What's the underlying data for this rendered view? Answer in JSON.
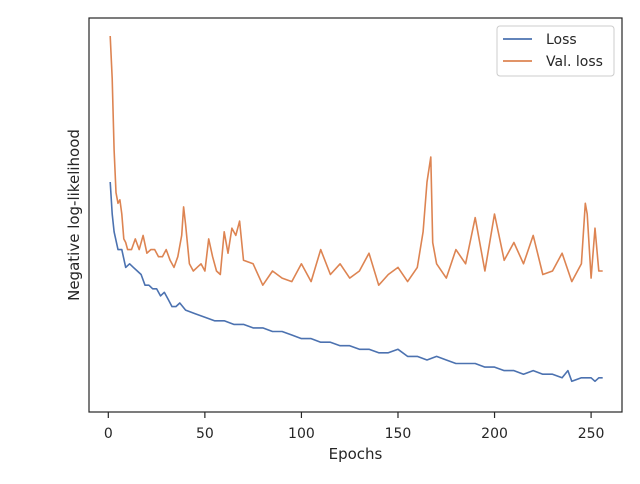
{
  "chart_data": {
    "type": "line",
    "title": "",
    "xlabel": "Epochs",
    "ylabel": "Negative log-likelihood",
    "xlim": [
      -10,
      266
    ],
    "ylim": [
      0,
      1
    ],
    "y_ticks_shown": false,
    "x_ticks": [
      0,
      50,
      100,
      150,
      200,
      250
    ],
    "x_tick_labels": [
      "0",
      "50",
      "100",
      "150",
      "200",
      "250"
    ],
    "grid": false,
    "legend_position": "top-right",
    "series": [
      {
        "name": "Loss",
        "color": "#4c72b0",
        "x": [
          1,
          2,
          3,
          5,
          7,
          9,
          11,
          13,
          15,
          17,
          19,
          21,
          23,
          25,
          27,
          29,
          31,
          33,
          35,
          37,
          40,
          45,
          50,
          55,
          60,
          65,
          70,
          75,
          80,
          85,
          90,
          95,
          100,
          105,
          110,
          115,
          120,
          125,
          130,
          135,
          140,
          145,
          150,
          155,
          160,
          165,
          170,
          175,
          180,
          185,
          190,
          195,
          200,
          205,
          210,
          215,
          220,
          225,
          230,
          235,
          238,
          240,
          245,
          250,
          252,
          254,
          256
        ],
        "y": [
          0.59,
          0.5,
          0.45,
          0.4,
          0.4,
          0.35,
          0.36,
          0.35,
          0.34,
          0.33,
          0.3,
          0.3,
          0.29,
          0.29,
          0.27,
          0.28,
          0.26,
          0.24,
          0.24,
          0.25,
          0.23,
          0.22,
          0.21,
          0.2,
          0.2,
          0.19,
          0.19,
          0.18,
          0.18,
          0.17,
          0.17,
          0.16,
          0.15,
          0.15,
          0.14,
          0.14,
          0.13,
          0.13,
          0.12,
          0.12,
          0.11,
          0.11,
          0.12,
          0.1,
          0.1,
          0.09,
          0.1,
          0.09,
          0.08,
          0.08,
          0.08,
          0.07,
          0.07,
          0.06,
          0.06,
          0.05,
          0.06,
          0.05,
          0.05,
          0.04,
          0.06,
          0.03,
          0.04,
          0.04,
          0.03,
          0.04,
          0.04
        ]
      },
      {
        "name": "Val. loss",
        "color": "#dd8452",
        "x": [
          1,
          2,
          3,
          4,
          5,
          6,
          7,
          8,
          9,
          10,
          12,
          14,
          16,
          18,
          20,
          22,
          24,
          26,
          28,
          30,
          32,
          34,
          36,
          38,
          39,
          40,
          42,
          44,
          46,
          48,
          50,
          52,
          54,
          56,
          58,
          60,
          62,
          64,
          66,
          68,
          70,
          75,
          80,
          85,
          90,
          95,
          100,
          105,
          110,
          115,
          120,
          125,
          130,
          135,
          140,
          145,
          150,
          155,
          160,
          163,
          165,
          167,
          168,
          170,
          175,
          180,
          185,
          190,
          195,
          200,
          205,
          210,
          215,
          220,
          225,
          230,
          235,
          240,
          245,
          247,
          248,
          250,
          252,
          254,
          256
        ],
        "y": [
          1.0,
          0.88,
          0.68,
          0.56,
          0.53,
          0.54,
          0.5,
          0.43,
          0.42,
          0.4,
          0.4,
          0.43,
          0.4,
          0.44,
          0.39,
          0.4,
          0.4,
          0.38,
          0.38,
          0.4,
          0.37,
          0.35,
          0.38,
          0.44,
          0.52,
          0.47,
          0.36,
          0.34,
          0.35,
          0.36,
          0.34,
          0.43,
          0.38,
          0.34,
          0.33,
          0.45,
          0.39,
          0.46,
          0.44,
          0.48,
          0.37,
          0.36,
          0.3,
          0.34,
          0.32,
          0.31,
          0.36,
          0.31,
          0.4,
          0.33,
          0.36,
          0.32,
          0.34,
          0.39,
          0.3,
          0.33,
          0.35,
          0.31,
          0.35,
          0.45,
          0.59,
          0.66,
          0.42,
          0.36,
          0.32,
          0.4,
          0.36,
          0.49,
          0.34,
          0.5,
          0.37,
          0.42,
          0.36,
          0.44,
          0.33,
          0.34,
          0.39,
          0.31,
          0.36,
          0.53,
          0.5,
          0.32,
          0.46,
          0.34,
          0.34
        ]
      }
    ]
  }
}
